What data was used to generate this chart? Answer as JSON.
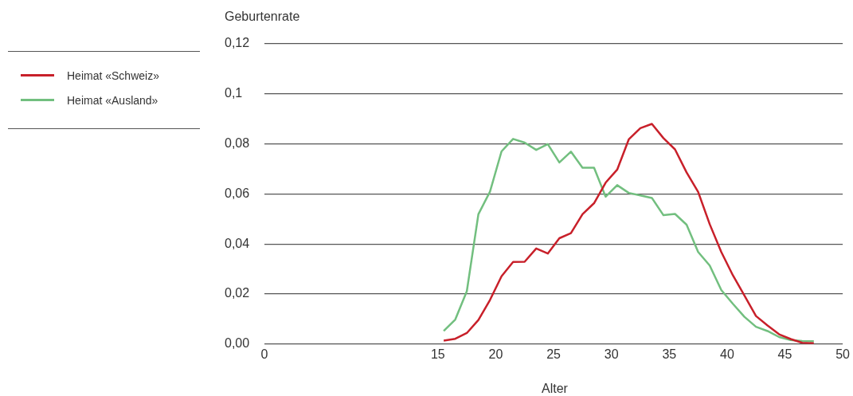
{
  "chart_data": {
    "type": "line",
    "xlabel": "Alter",
    "ylabel": "Geburtenrate",
    "x": [
      15.5,
      16.5,
      17.5,
      18.5,
      19.5,
      20.5,
      21.5,
      22.5,
      23.5,
      24.5,
      25.5,
      26.5,
      27.5,
      28.5,
      29.5,
      30.5,
      31.5,
      32.5,
      33.5,
      34.5,
      35.5,
      36.5,
      37.5,
      38.5,
      39.5,
      40.5,
      41.5,
      42.5,
      43.5,
      44.5,
      45.5,
      46.5,
      47.5
    ],
    "series": [
      {
        "name": "Heimat «Schweiz»",
        "color": "#c8202a",
        "values": [
          0.0014,
          0.0021,
          0.0044,
          0.0096,
          0.0176,
          0.0271,
          0.0328,
          0.0329,
          0.0382,
          0.0362,
          0.0423,
          0.0443,
          0.0519,
          0.0563,
          0.0645,
          0.0697,
          0.0818,
          0.0863,
          0.088,
          0.0823,
          0.0778,
          0.0686,
          0.0608,
          0.0479,
          0.0368,
          0.0275,
          0.0194,
          0.0112,
          0.0074,
          0.0039,
          0.002,
          0.0005,
          0.0003
        ]
      },
      {
        "name": "Heimat «Ausland»",
        "color": "#72bf7f",
        "values": [
          0.0052,
          0.0098,
          0.0211,
          0.0519,
          0.0609,
          0.077,
          0.082,
          0.0805,
          0.0776,
          0.0799,
          0.0726,
          0.0769,
          0.0705,
          0.0705,
          0.0589,
          0.0635,
          0.0604,
          0.0594,
          0.0584,
          0.0515,
          0.052,
          0.0477,
          0.0368,
          0.0314,
          0.0216,
          0.0161,
          0.0109,
          0.0069,
          0.0052,
          0.0028,
          0.0016,
          0.0012,
          0.0011
        ]
      }
    ],
    "xlim": [
      0,
      50
    ],
    "xticks": [
      0,
      15,
      20,
      25,
      30,
      35,
      40,
      45,
      50
    ],
    "ylim": [
      0,
      0.12
    ],
    "yticks": [
      {
        "value": 0,
        "label": "0,00"
      },
      {
        "value": 0.02,
        "label": "0,02"
      },
      {
        "value": 0.04,
        "label": "0,04"
      },
      {
        "value": 0.06,
        "label": "0,06"
      },
      {
        "value": 0.08,
        "label": "0,08"
      },
      {
        "value": 0.1,
        "label": "0,1"
      },
      {
        "value": 0.12,
        "label": "0,12"
      }
    ],
    "grid": "y",
    "legend": "left",
    "marker": "none",
    "line_style": "solid"
  }
}
